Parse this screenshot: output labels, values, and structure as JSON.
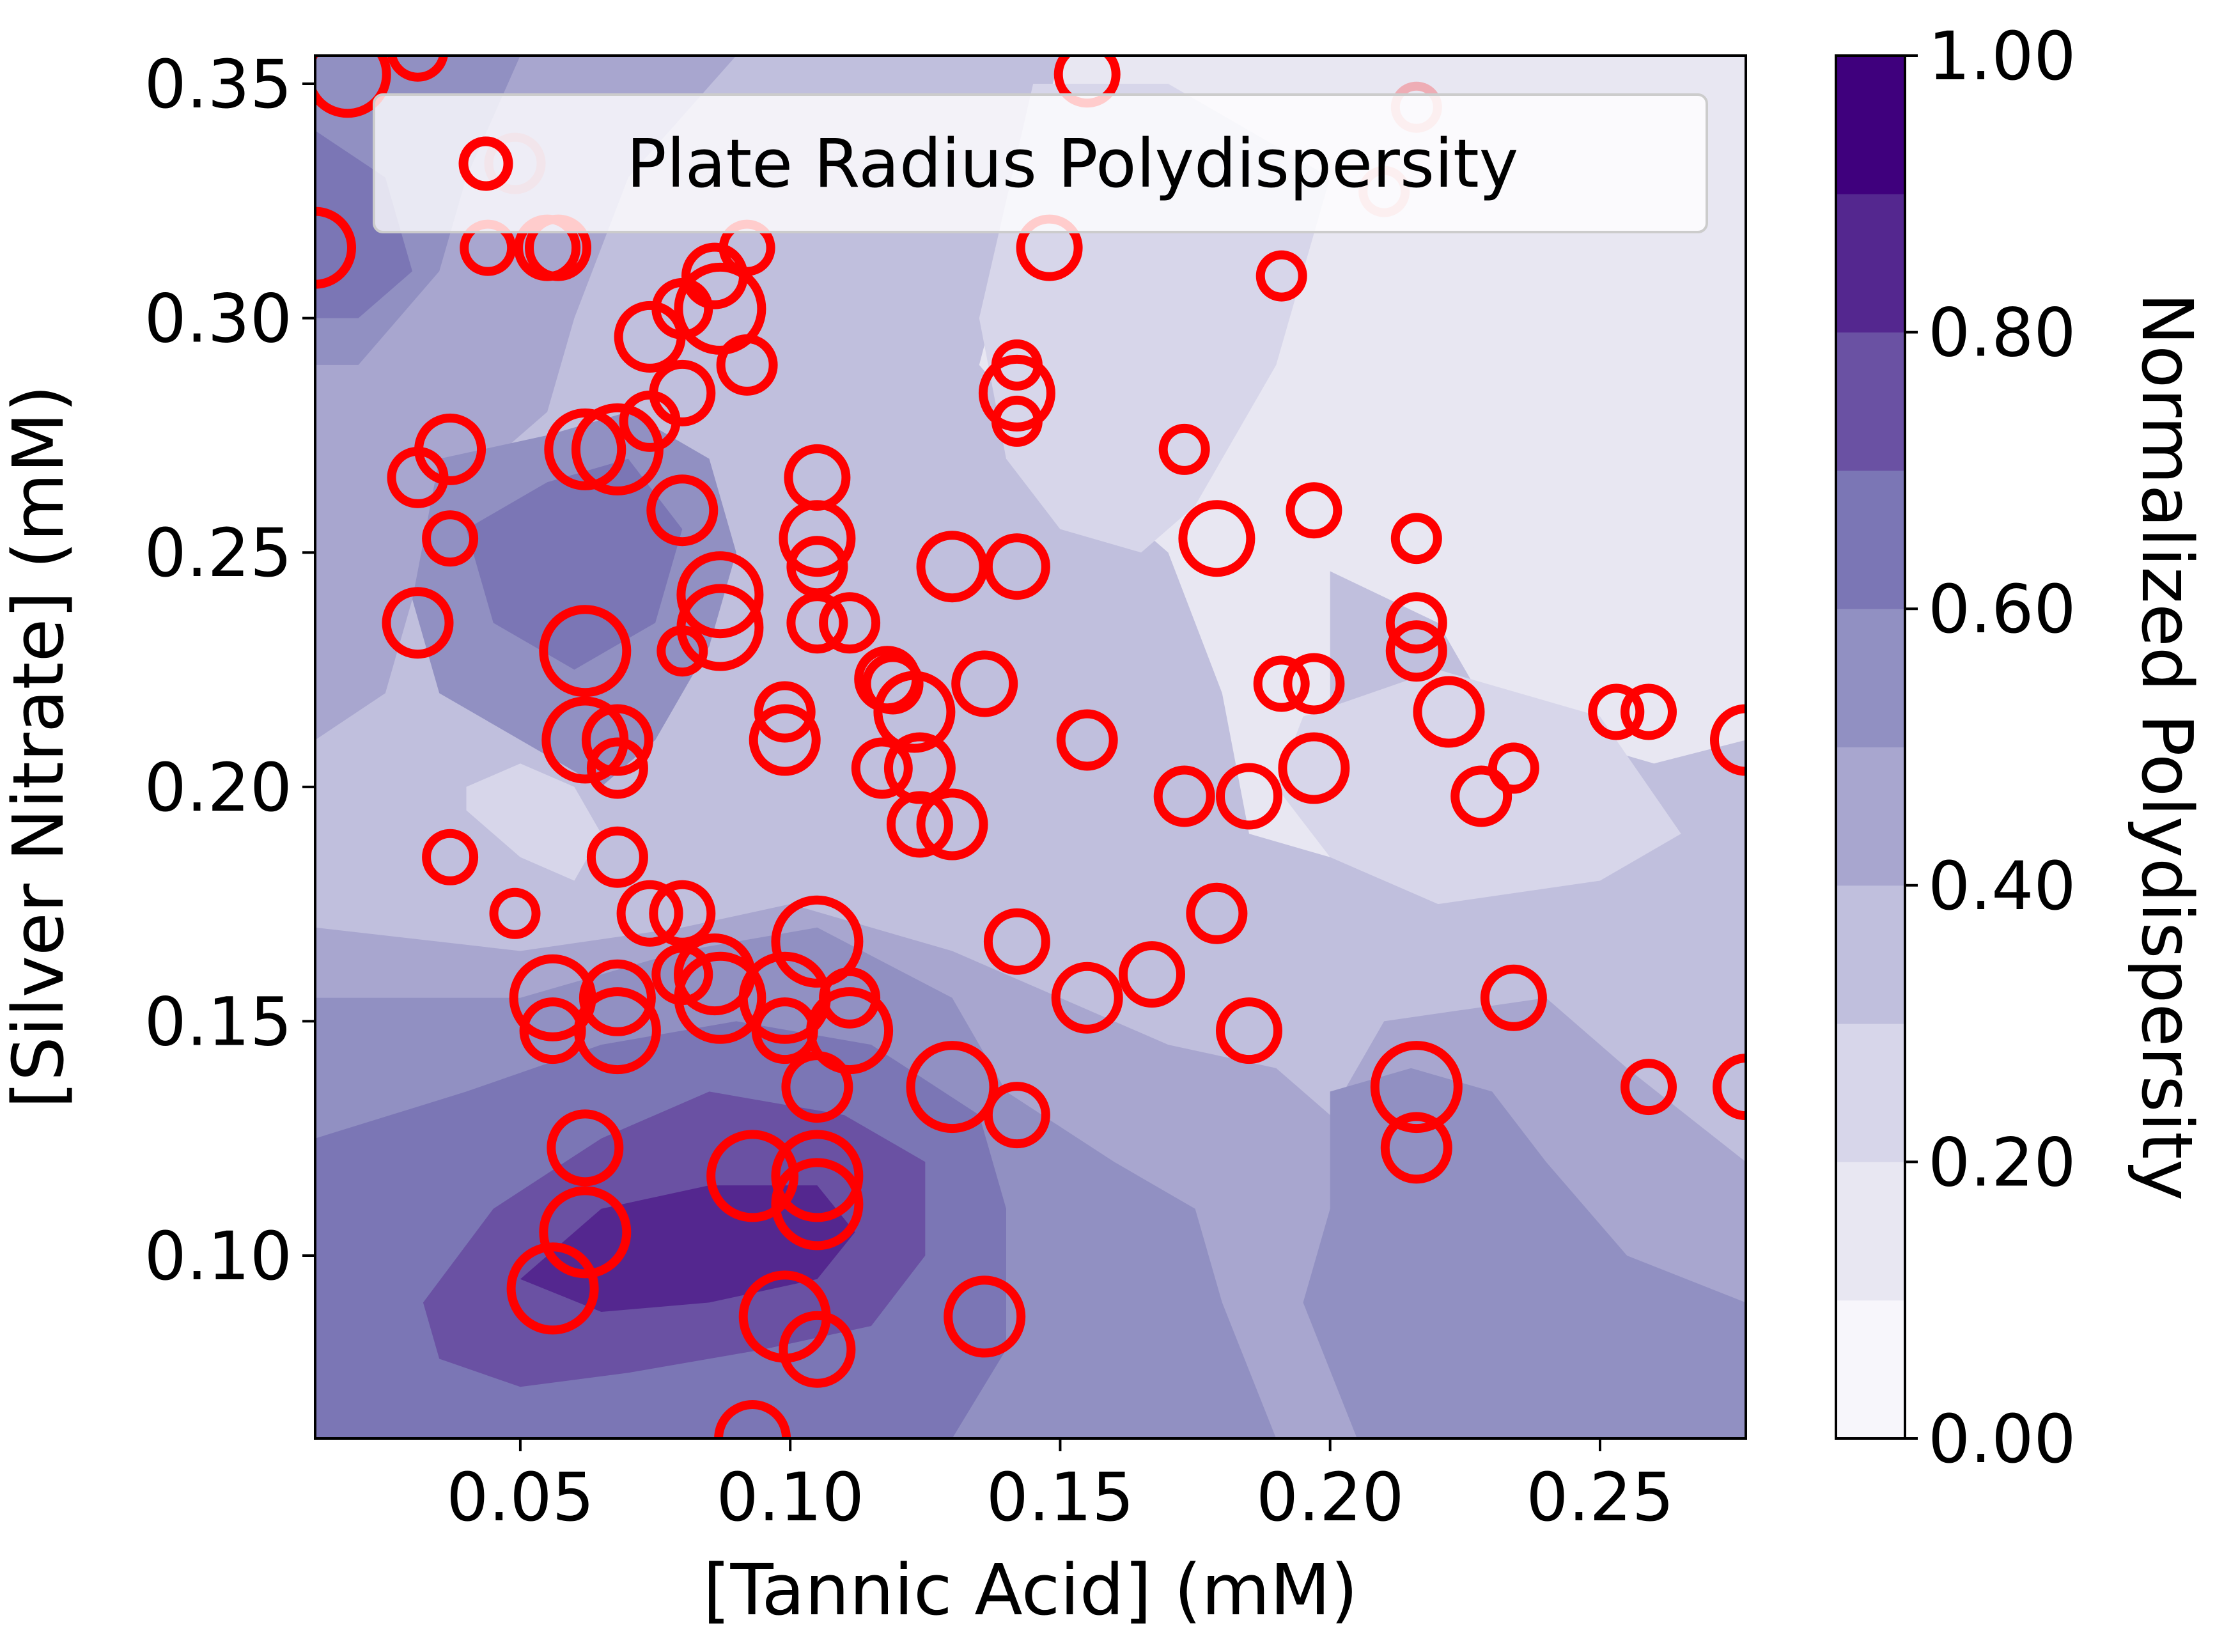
{
  "chart_data": {
    "type": "scatter",
    "subtype": "contour-filled with bubble scatter overlay",
    "xlabel": "[Tannic Acid] (mM)",
    "ylabel": "[Silver Nitrate] (mM)",
    "xlim": [
      0.012,
      0.277
    ],
    "ylim": [
      0.061,
      0.356
    ],
    "xticks": [
      "0.05",
      "0.10",
      "0.15",
      "0.20",
      "0.25"
    ],
    "yticks": [
      "0.10",
      "0.15",
      "0.20",
      "0.25",
      "0.30",
      "0.35"
    ],
    "legend": {
      "position": "top",
      "entries": [
        "Plate Radius Polydispersity"
      ]
    },
    "marker_color": "#ff0000",
    "colormap": "Purples",
    "colorbar": {
      "label": "Normalized Polydispersity",
      "ticks": [
        "0.00",
        "0.20",
        "0.40",
        "0.60",
        "0.80",
        "1.00"
      ],
      "levels": [
        0.0,
        0.1,
        0.2,
        0.3,
        0.4,
        0.5,
        0.6,
        0.7,
        0.8,
        0.9,
        1.0
      ],
      "colors": [
        "#f7f6fb",
        "#e8e7f2",
        "#d7d6ea",
        "#c0bfdd",
        "#a8a6cf",
        "#9190c2",
        "#7b76b5",
        "#6a51a3",
        "#54278f",
        "#3f007d"
      ]
    },
    "contour_regions": [
      {
        "level": 0.1,
        "points": [
          [
            0.2,
            0.246
          ],
          [
            0.22,
            0.235
          ],
          [
            0.23,
            0.215
          ],
          [
            0.26,
            0.205
          ],
          [
            0.277,
            0.21
          ],
          [
            0.277,
            0.356
          ],
          [
            0.15,
            0.356
          ],
          [
            0.135,
            0.29
          ],
          [
            0.15,
            0.27
          ],
          [
            0.17,
            0.25
          ],
          [
            0.18,
            0.22
          ],
          [
            0.185,
            0.19
          ],
          [
            0.2,
            0.185
          ]
        ]
      },
      {
        "level": 0.2,
        "points": [
          [
            0.17,
            0.35
          ],
          [
            0.145,
            0.35
          ],
          [
            0.135,
            0.3
          ],
          [
            0.14,
            0.27
          ],
          [
            0.15,
            0.255
          ],
          [
            0.165,
            0.25
          ],
          [
            0.175,
            0.26
          ],
          [
            0.19,
            0.29
          ],
          [
            0.2,
            0.33
          ]
        ]
      },
      {
        "level": 0.2,
        "points": [
          [
            0.195,
            0.215
          ],
          [
            0.22,
            0.225
          ],
          [
            0.25,
            0.215
          ],
          [
            0.265,
            0.19
          ],
          [
            0.25,
            0.18
          ],
          [
            0.22,
            0.175
          ],
          [
            0.2,
            0.185
          ],
          [
            0.19,
            0.2
          ]
        ]
      },
      {
        "level": 0.1,
        "points": [
          [
            0.225,
            0.25
          ],
          [
            0.24,
            0.26
          ],
          [
            0.26,
            0.255
          ],
          [
            0.27,
            0.24
          ],
          [
            0.265,
            0.225
          ],
          [
            0.245,
            0.225
          ],
          [
            0.23,
            0.235
          ]
        ]
      },
      {
        "level": 0.2,
        "points": [
          [
            0.04,
            0.195
          ],
          [
            0.05,
            0.185
          ],
          [
            0.06,
            0.18
          ],
          [
            0.065,
            0.19
          ],
          [
            0.06,
            0.2
          ],
          [
            0.05,
            0.205
          ],
          [
            0.04,
            0.2
          ]
        ]
      },
      {
        "level": 0.4,
        "points": [
          [
            0.012,
            0.356
          ],
          [
            0.09,
            0.356
          ],
          [
            0.07,
            0.33
          ],
          [
            0.06,
            0.3
          ],
          [
            0.055,
            0.28
          ],
          [
            0.045,
            0.27
          ],
          [
            0.035,
            0.255
          ],
          [
            0.03,
            0.24
          ],
          [
            0.025,
            0.22
          ],
          [
            0.012,
            0.21
          ]
        ]
      },
      {
        "level": 0.4,
        "points": [
          [
            0.012,
            0.17
          ],
          [
            0.05,
            0.165
          ],
          [
            0.08,
            0.17
          ],
          [
            0.1,
            0.175
          ],
          [
            0.13,
            0.165
          ],
          [
            0.15,
            0.155
          ],
          [
            0.17,
            0.145
          ],
          [
            0.19,
            0.14
          ],
          [
            0.2,
            0.13
          ],
          [
            0.21,
            0.15
          ],
          [
            0.24,
            0.155
          ],
          [
            0.255,
            0.14
          ],
          [
            0.277,
            0.12
          ],
          [
            0.277,
            0.061
          ],
          [
            0.012,
            0.061
          ]
        ]
      },
      {
        "level": 0.5,
        "points": [
          [
            0.012,
            0.356
          ],
          [
            0.05,
            0.356
          ],
          [
            0.04,
            0.33
          ],
          [
            0.035,
            0.31
          ],
          [
            0.02,
            0.29
          ],
          [
            0.012,
            0.29
          ]
        ]
      },
      {
        "level": 0.5,
        "points": [
          [
            0.035,
            0.27
          ],
          [
            0.055,
            0.275
          ],
          [
            0.07,
            0.28
          ],
          [
            0.085,
            0.27
          ],
          [
            0.09,
            0.25
          ],
          [
            0.085,
            0.23
          ],
          [
            0.075,
            0.21
          ],
          [
            0.065,
            0.2
          ],
          [
            0.05,
            0.21
          ],
          [
            0.035,
            0.22
          ],
          [
            0.03,
            0.24
          ]
        ]
      },
      {
        "level": 0.5,
        "points": [
          [
            0.012,
            0.155
          ],
          [
            0.05,
            0.155
          ],
          [
            0.08,
            0.165
          ],
          [
            0.105,
            0.17
          ],
          [
            0.13,
            0.155
          ],
          [
            0.14,
            0.135
          ],
          [
            0.16,
            0.12
          ],
          [
            0.175,
            0.11
          ],
          [
            0.18,
            0.09
          ],
          [
            0.19,
            0.061
          ],
          [
            0.012,
            0.061
          ]
        ]
      },
      {
        "level": 0.5,
        "points": [
          [
            0.2,
            0.135
          ],
          [
            0.215,
            0.14
          ],
          [
            0.23,
            0.135
          ],
          [
            0.24,
            0.12
          ],
          [
            0.255,
            0.1
          ],
          [
            0.277,
            0.09
          ],
          [
            0.277,
            0.061
          ],
          [
            0.205,
            0.061
          ],
          [
            0.195,
            0.09
          ],
          [
            0.2,
            0.11
          ]
        ]
      },
      {
        "level": 0.6,
        "points": [
          [
            0.012,
            0.34
          ],
          [
            0.025,
            0.33
          ],
          [
            0.03,
            0.31
          ],
          [
            0.02,
            0.3
          ],
          [
            0.012,
            0.3
          ]
        ]
      },
      {
        "level": 0.6,
        "points": [
          [
            0.04,
            0.255
          ],
          [
            0.055,
            0.265
          ],
          [
            0.07,
            0.27
          ],
          [
            0.08,
            0.255
          ],
          [
            0.075,
            0.235
          ],
          [
            0.06,
            0.225
          ],
          [
            0.045,
            0.235
          ]
        ]
      },
      {
        "level": 0.6,
        "points": [
          [
            0.012,
            0.125
          ],
          [
            0.04,
            0.135
          ],
          [
            0.065,
            0.145
          ],
          [
            0.09,
            0.15
          ],
          [
            0.115,
            0.145
          ],
          [
            0.135,
            0.13
          ],
          [
            0.14,
            0.11
          ],
          [
            0.14,
            0.08
          ],
          [
            0.13,
            0.061
          ],
          [
            0.012,
            0.061
          ]
        ]
      },
      {
        "level": 0.7,
        "points": [
          [
            0.032,
            0.09
          ],
          [
            0.045,
            0.11
          ],
          [
            0.065,
            0.125
          ],
          [
            0.085,
            0.135
          ],
          [
            0.11,
            0.13
          ],
          [
            0.125,
            0.12
          ],
          [
            0.125,
            0.1
          ],
          [
            0.115,
            0.085
          ],
          [
            0.095,
            0.08
          ],
          [
            0.07,
            0.075
          ],
          [
            0.05,
            0.072
          ],
          [
            0.035,
            0.078
          ]
        ]
      },
      {
        "level": 0.8,
        "points": [
          [
            0.05,
            0.095
          ],
          [
            0.065,
            0.11
          ],
          [
            0.085,
            0.115
          ],
          [
            0.105,
            0.115
          ],
          [
            0.112,
            0.105
          ],
          [
            0.105,
            0.095
          ],
          [
            0.085,
            0.09
          ],
          [
            0.065,
            0.088
          ]
        ]
      }
    ],
    "points": [
      {
        "x": 0.018,
        "y": 0.352,
        "v": 0.9
      },
      {
        "x": 0.031,
        "y": 0.357,
        "v": 0.4
      },
      {
        "x": 0.012,
        "y": 0.315,
        "v": 0.8
      },
      {
        "x": 0.044,
        "y": 0.315,
        "v": 0.3
      },
      {
        "x": 0.055,
        "y": 0.315,
        "v": 0.5
      },
      {
        "x": 0.057,
        "y": 0.315,
        "v": 0.5
      },
      {
        "x": 0.049,
        "y": 0.333,
        "v": 0.4,
        "faded": true
      },
      {
        "x": 0.074,
        "y": 0.296,
        "v": 0.6
      },
      {
        "x": 0.08,
        "y": 0.302,
        "v": 0.4
      },
      {
        "x": 0.087,
        "y": 0.302,
        "v": 1.0
      },
      {
        "x": 0.086,
        "y": 0.309,
        "v": 0.5
      },
      {
        "x": 0.092,
        "y": 0.315,
        "v": 0.3
      },
      {
        "x": 0.092,
        "y": 0.29,
        "v": 0.4
      },
      {
        "x": 0.08,
        "y": 0.284,
        "v": 0.5
      },
      {
        "x": 0.074,
        "y": 0.278,
        "v": 0.4
      },
      {
        "x": 0.062,
        "y": 0.272,
        "v": 0.8
      },
      {
        "x": 0.068,
        "y": 0.272,
        "v": 1.0
      },
      {
        "x": 0.037,
        "y": 0.272,
        "v": 0.6
      },
      {
        "x": 0.031,
        "y": 0.266,
        "v": 0.4
      },
      {
        "x": 0.037,
        "y": 0.253,
        "v": 0.3
      },
      {
        "x": 0.08,
        "y": 0.259,
        "v": 0.6
      },
      {
        "x": 0.087,
        "y": 0.241,
        "v": 0.9
      },
      {
        "x": 0.087,
        "y": 0.234,
        "v": 0.9
      },
      {
        "x": 0.08,
        "y": 0.229,
        "v": 0.2
      },
      {
        "x": 0.062,
        "y": 0.229,
        "v": 1.0
      },
      {
        "x": 0.031,
        "y": 0.235,
        "v": 0.6
      },
      {
        "x": 0.062,
        "y": 0.21,
        "v": 0.9
      },
      {
        "x": 0.068,
        "y": 0.21,
        "v": 0.6
      },
      {
        "x": 0.068,
        "y": 0.204,
        "v": 0.4
      },
      {
        "x": 0.037,
        "y": 0.185,
        "v": 0.3
      },
      {
        "x": 0.068,
        "y": 0.185,
        "v": 0.4
      },
      {
        "x": 0.049,
        "y": 0.173,
        "v": 0.2
      },
      {
        "x": 0.074,
        "y": 0.173,
        "v": 0.5
      },
      {
        "x": 0.08,
        "y": 0.173,
        "v": 0.5
      },
      {
        "x": 0.08,
        "y": 0.16,
        "v": 0.4
      },
      {
        "x": 0.086,
        "y": 0.16,
        "v": 0.8
      },
      {
        "x": 0.087,
        "y": 0.155,
        "v": 1.0
      },
      {
        "x": 0.056,
        "y": 0.155,
        "v": 0.9
      },
      {
        "x": 0.056,
        "y": 0.148,
        "v": 0.5
      },
      {
        "x": 0.068,
        "y": 0.155,
        "v": 0.7
      },
      {
        "x": 0.068,
        "y": 0.148,
        "v": 0.9
      },
      {
        "x": 0.099,
        "y": 0.155,
        "v": 1.0
      },
      {
        "x": 0.099,
        "y": 0.148,
        "v": 0.5
      },
      {
        "x": 0.105,
        "y": 0.167,
        "v": 1.0
      },
      {
        "x": 0.111,
        "y": 0.155,
        "v": 0.4
      },
      {
        "x": 0.111,
        "y": 0.148,
        "v": 0.9
      },
      {
        "x": 0.105,
        "y": 0.136,
        "v": 0.6
      },
      {
        "x": 0.062,
        "y": 0.123,
        "v": 0.7
      },
      {
        "x": 0.093,
        "y": 0.117,
        "v": 1.0
      },
      {
        "x": 0.105,
        "y": 0.117,
        "v": 1.0
      },
      {
        "x": 0.105,
        "y": 0.111,
        "v": 1.0
      },
      {
        "x": 0.062,
        "y": 0.105,
        "v": 1.0
      },
      {
        "x": 0.056,
        "y": 0.093,
        "v": 1.0
      },
      {
        "x": 0.099,
        "y": 0.087,
        "v": 1.0
      },
      {
        "x": 0.105,
        "y": 0.08,
        "v": 0.7
      },
      {
        "x": 0.093,
        "y": 0.061,
        "v": 0.7
      },
      {
        "x": 0.136,
        "y": 0.087,
        "v": 0.8
      },
      {
        "x": 0.13,
        "y": 0.136,
        "v": 1.0
      },
      {
        "x": 0.142,
        "y": 0.13,
        "v": 0.5
      },
      {
        "x": 0.142,
        "y": 0.167,
        "v": 0.5
      },
      {
        "x": 0.105,
        "y": 0.266,
        "v": 0.5
      },
      {
        "x": 0.105,
        "y": 0.253,
        "v": 0.7
      },
      {
        "x": 0.105,
        "y": 0.247,
        "v": 0.4
      },
      {
        "x": 0.105,
        "y": 0.235,
        "v": 0.4
      },
      {
        "x": 0.111,
        "y": 0.235,
        "v": 0.4
      },
      {
        "x": 0.099,
        "y": 0.216,
        "v": 0.4
      },
      {
        "x": 0.099,
        "y": 0.21,
        "v": 0.6
      },
      {
        "x": 0.118,
        "y": 0.223,
        "v": 0.5
      },
      {
        "x": 0.119,
        "y": 0.222,
        "v": 0.4
      },
      {
        "x": 0.123,
        "y": 0.216,
        "v": 0.8
      },
      {
        "x": 0.117,
        "y": 0.204,
        "v": 0.4
      },
      {
        "x": 0.124,
        "y": 0.204,
        "v": 0.6
      },
      {
        "x": 0.124,
        "y": 0.192,
        "v": 0.5
      },
      {
        "x": 0.13,
        "y": 0.192,
        "v": 0.6
      },
      {
        "x": 0.136,
        "y": 0.222,
        "v": 0.5
      },
      {
        "x": 0.13,
        "y": 0.247,
        "v": 0.6
      },
      {
        "x": 0.142,
        "y": 0.247,
        "v": 0.5
      },
      {
        "x": 0.142,
        "y": 0.29,
        "v": 0.2
      },
      {
        "x": 0.142,
        "y": 0.284,
        "v": 0.7
      },
      {
        "x": 0.142,
        "y": 0.278,
        "v": 0.2
      },
      {
        "x": 0.148,
        "y": 0.315,
        "v": 0.5
      },
      {
        "x": 0.155,
        "y": 0.352,
        "v": 0.5
      },
      {
        "x": 0.155,
        "y": 0.21,
        "v": 0.4
      },
      {
        "x": 0.155,
        "y": 0.155,
        "v": 0.6
      },
      {
        "x": 0.167,
        "y": 0.16,
        "v": 0.5
      },
      {
        "x": 0.173,
        "y": 0.198,
        "v": 0.4
      },
      {
        "x": 0.173,
        "y": 0.272,
        "v": 0.2
      },
      {
        "x": 0.179,
        "y": 0.253,
        "v": 0.7
      },
      {
        "x": 0.179,
        "y": 0.173,
        "v": 0.4
      },
      {
        "x": 0.185,
        "y": 0.198,
        "v": 0.5
      },
      {
        "x": 0.185,
        "y": 0.148,
        "v": 0.5
      },
      {
        "x": 0.191,
        "y": 0.309,
        "v": 0.2
      },
      {
        "x": 0.191,
        "y": 0.222,
        "v": 0.3
      },
      {
        "x": 0.197,
        "y": 0.259,
        "v": 0.3
      },
      {
        "x": 0.197,
        "y": 0.222,
        "v": 0.4
      },
      {
        "x": 0.197,
        "y": 0.204,
        "v": 0.6
      },
      {
        "x": 0.21,
        "y": 0.327,
        "v": 0.2,
        "faded": true
      },
      {
        "x": 0.216,
        "y": 0.345,
        "v": 0.2,
        "faded": true
      },
      {
        "x": 0.216,
        "y": 0.253,
        "v": 0.2
      },
      {
        "x": 0.216,
        "y": 0.235,
        "v": 0.4
      },
      {
        "x": 0.216,
        "y": 0.229,
        "v": 0.4
      },
      {
        "x": 0.222,
        "y": 0.216,
        "v": 0.6
      },
      {
        "x": 0.228,
        "y": 0.198,
        "v": 0.4
      },
      {
        "x": 0.234,
        "y": 0.204,
        "v": 0.2
      },
      {
        "x": 0.216,
        "y": 0.136,
        "v": 1.0
      },
      {
        "x": 0.216,
        "y": 0.123,
        "v": 0.6
      },
      {
        "x": 0.234,
        "y": 0.155,
        "v": 0.5
      },
      {
        "x": 0.253,
        "y": 0.216,
        "v": 0.3
      },
      {
        "x": 0.259,
        "y": 0.216,
        "v": 0.3
      },
      {
        "x": 0.259,
        "y": 0.136,
        "v": 0.3
      },
      {
        "x": 0.277,
        "y": 0.21,
        "v": 0.6
      },
      {
        "x": 0.277,
        "y": 0.136,
        "v": 0.5
      }
    ]
  }
}
